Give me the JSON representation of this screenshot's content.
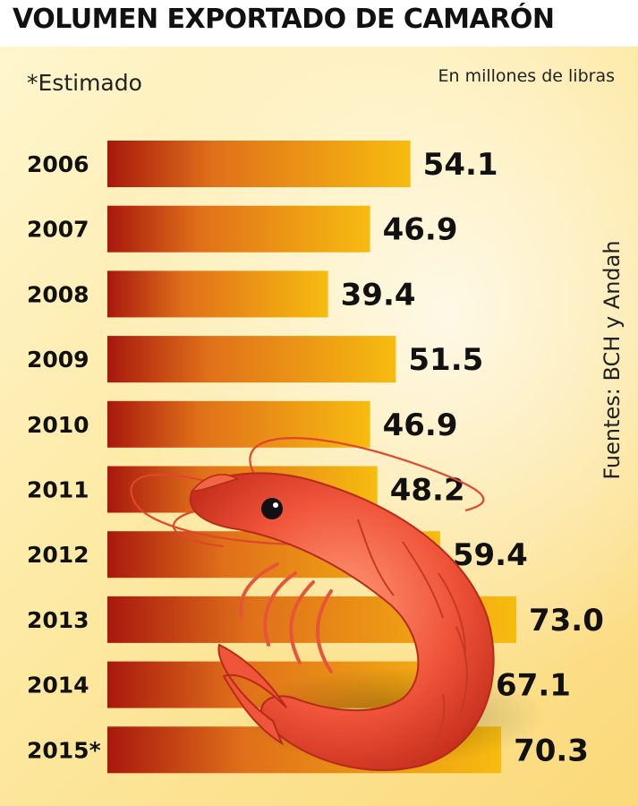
{
  "title": "VOLUMEN EXPORTADO DE CAMARÓN",
  "note": "*Estimado",
  "units": "En millones de libras",
  "source": "Fuentes: BCH y Andah",
  "colors": {
    "bar_start": "#a8180e",
    "bar_mid": "#e0701a",
    "bar_end": "#f7bc10",
    "shrimp": "#f0553a"
  },
  "illustration": "shrimp",
  "chart_data": {
    "type": "bar",
    "orientation": "horizontal",
    "title": "VOLUMEN EXPORTADO DE CAMARÓN",
    "xlabel": "",
    "ylabel": "",
    "categories": [
      "2006",
      "2007",
      "2008",
      "2009",
      "2010",
      "2011",
      "2012",
      "2013",
      "2014",
      "2015*"
    ],
    "values": [
      54.1,
      46.9,
      39.4,
      51.5,
      46.9,
      48.2,
      59.4,
      73.0,
      67.1,
      70.3
    ],
    "value_labels": [
      "54.1",
      "46.9",
      "39.4",
      "51.5",
      "46.9",
      "48.2",
      "59.4",
      "73.0",
      "67.1",
      "70.3"
    ],
    "grid": false,
    "legend": "none"
  }
}
